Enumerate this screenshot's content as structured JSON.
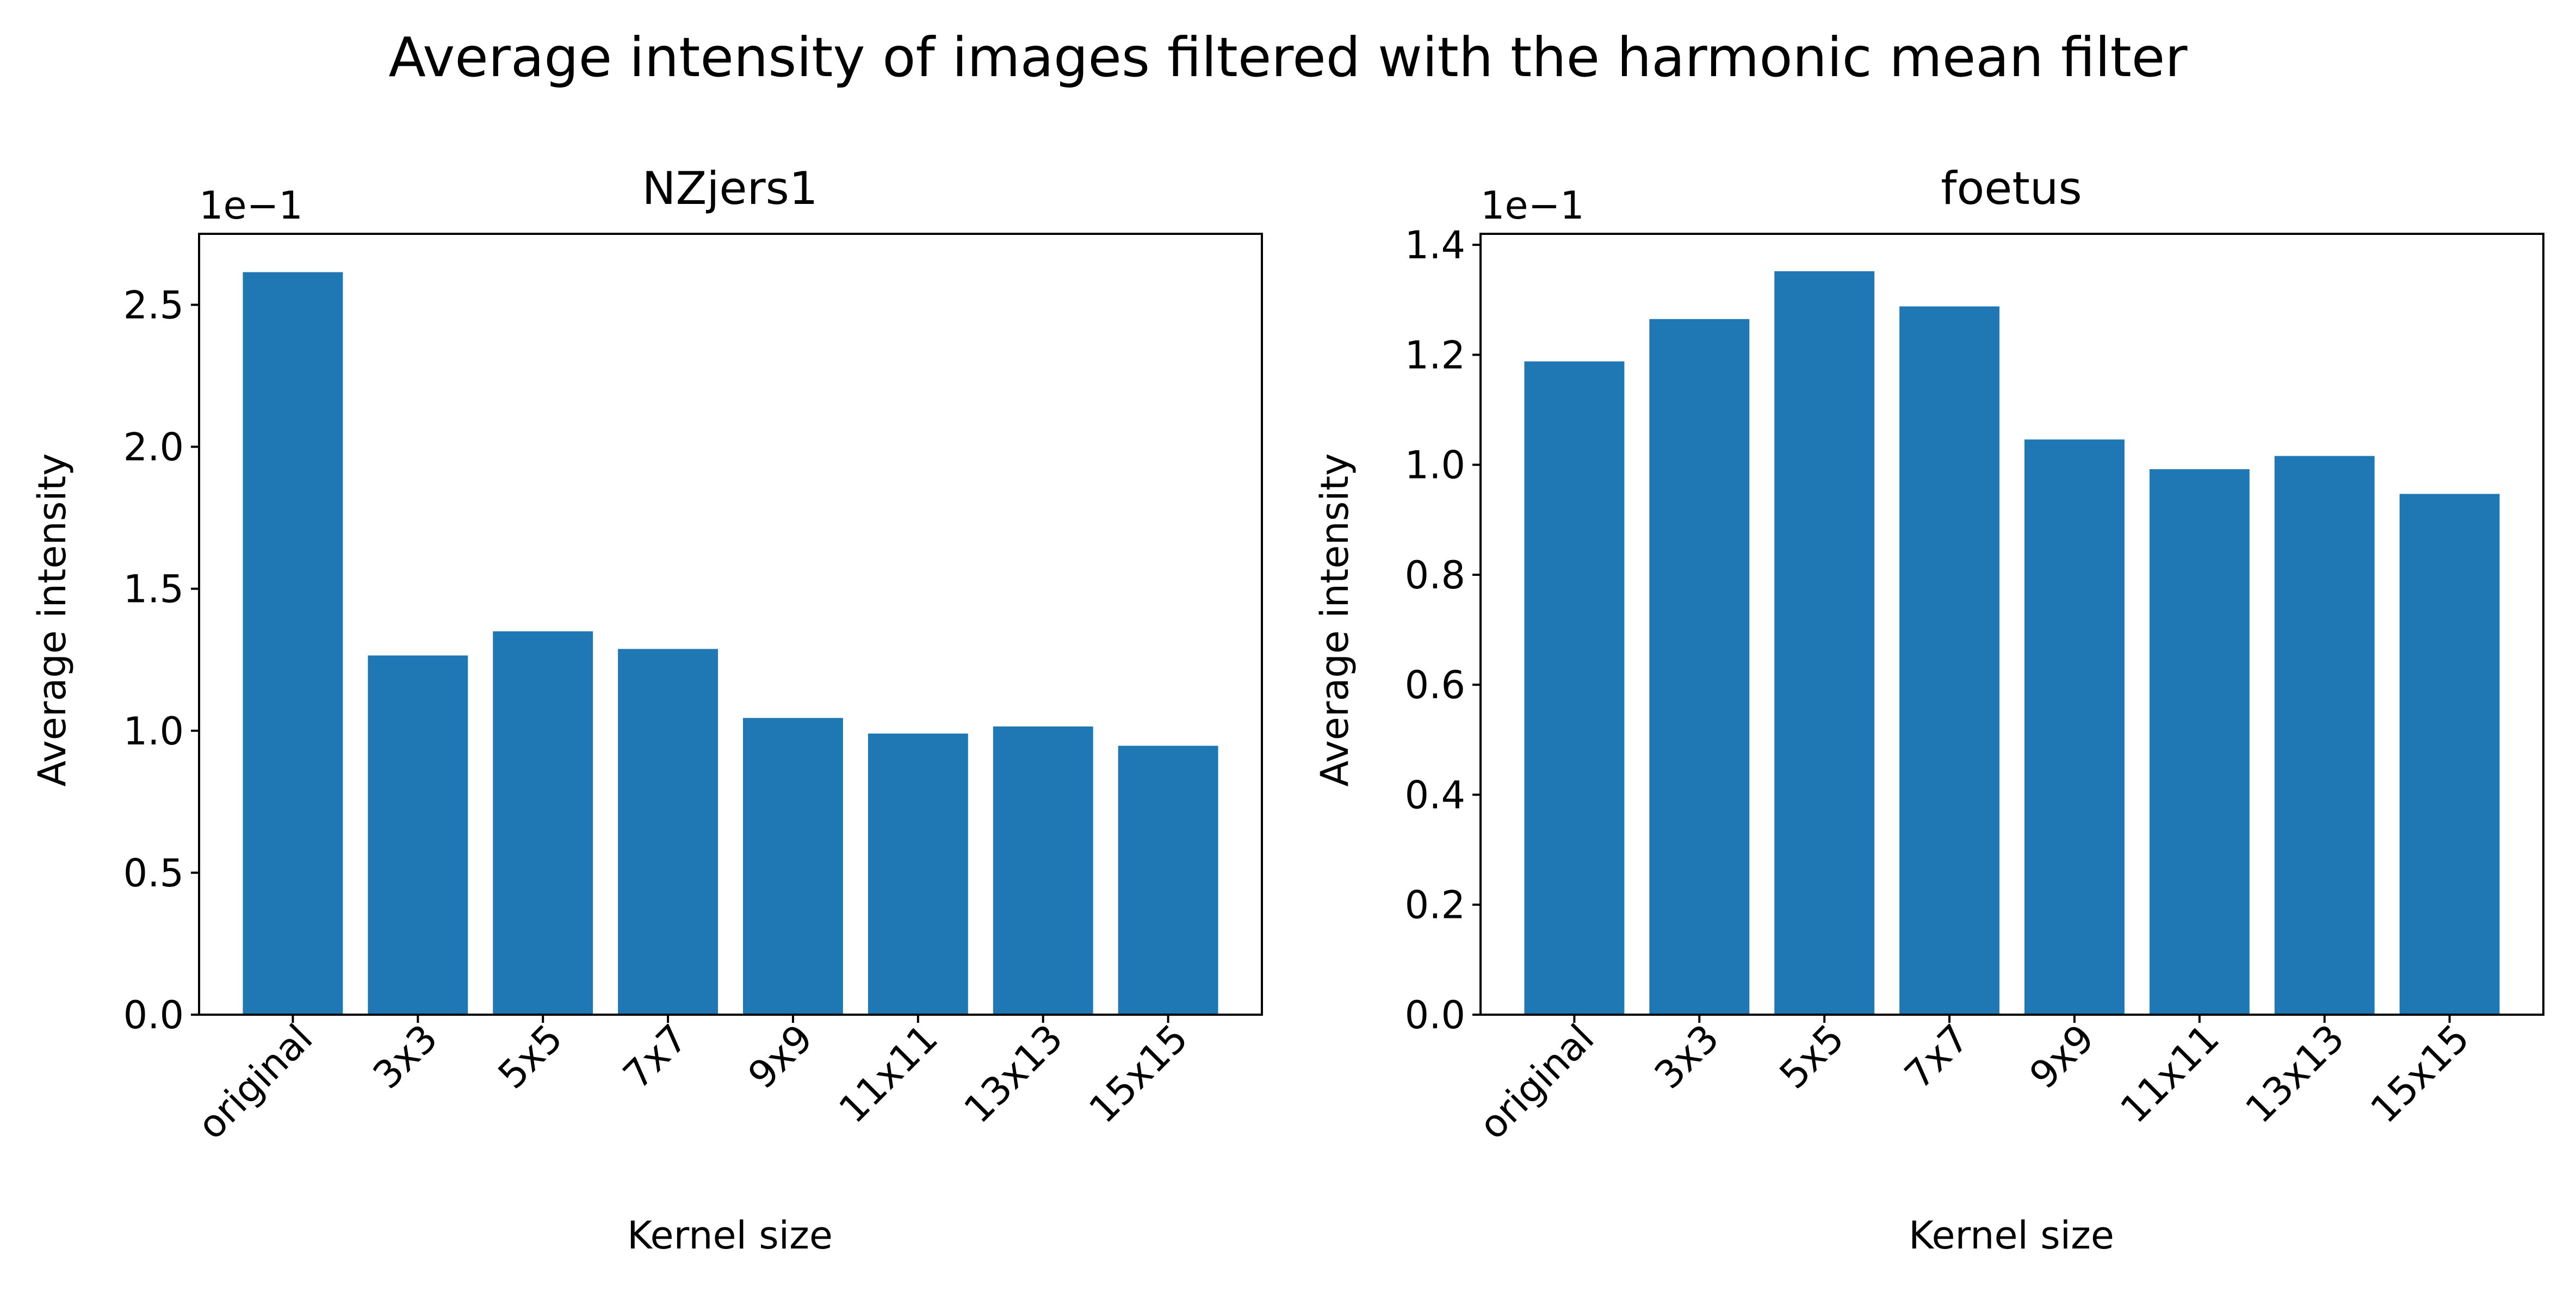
{
  "title": "Average intensity of images filtered with the harmonic mean filter",
  "chart_data": [
    {
      "type": "bar",
      "title": "NZjers1",
      "xlabel": "Kernel size",
      "ylabel": "Average intensity",
      "offset_label": "1e−1",
      "categories": [
        "original",
        "3x3",
        "5x5",
        "7x7",
        "9x9",
        "11x11",
        "13x13",
        "15x15"
      ],
      "values": [
        0.2615,
        0.1265,
        0.135,
        0.1288,
        0.1045,
        0.099,
        0.1015,
        0.0947
      ],
      "ylim": [
        0,
        0.275
      ],
      "yticks": [
        0,
        0.05,
        0.1,
        0.15,
        0.2,
        0.25
      ],
      "ytick_labels": [
        "0.0",
        "0.5",
        "1.0",
        "1.5",
        "2.0",
        "2.5"
      ],
      "bar_color": "#1f77b4",
      "grid": false
    },
    {
      "type": "bar",
      "title": "foetus",
      "xlabel": "Kernel size",
      "ylabel": "Average intensity",
      "offset_label": "1e−1",
      "categories": [
        "original",
        "3x3",
        "5x5",
        "7x7",
        "9x9",
        "11x11",
        "13x13",
        "15x15"
      ],
      "values": [
        0.1188,
        0.1265,
        0.1352,
        0.1288,
        0.1046,
        0.0992,
        0.1016,
        0.0947
      ],
      "ylim": [
        0,
        0.142
      ],
      "yticks": [
        0,
        0.02,
        0.04,
        0.06,
        0.08,
        0.1,
        0.12,
        0.14
      ],
      "ytick_labels": [
        "0.0",
        "0.2",
        "0.4",
        "0.6",
        "0.8",
        "1.0",
        "1.2",
        "1.4"
      ],
      "bar_color": "#1f77b4",
      "grid": false
    }
  ]
}
